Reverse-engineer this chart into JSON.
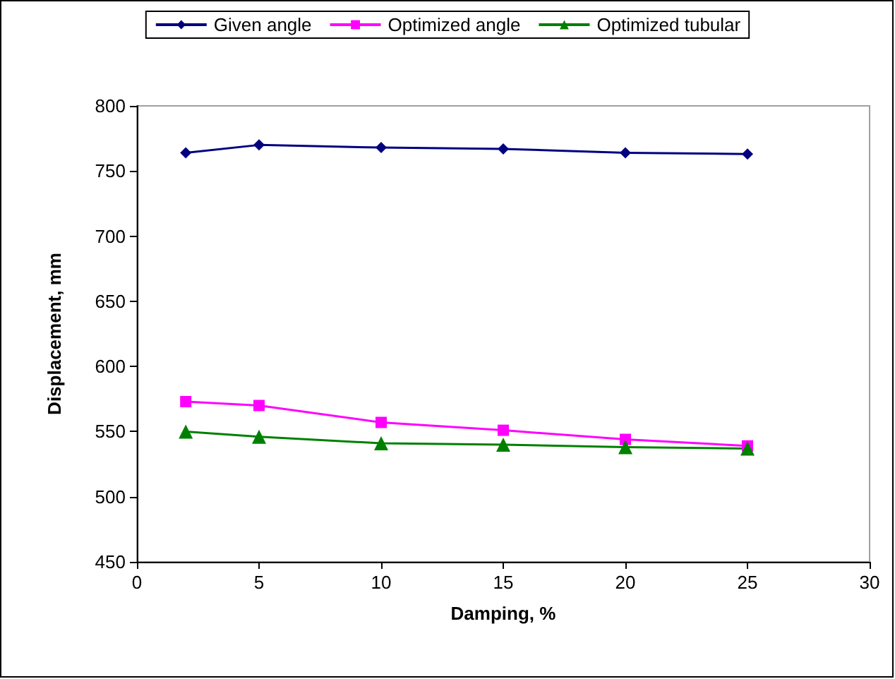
{
  "chart_data": {
    "type": "line",
    "xlabel": "Damping, %",
    "ylabel": "Displacement, mm",
    "x": [
      2,
      5,
      10,
      15,
      20,
      25
    ],
    "series": [
      {
        "name": "Given angle",
        "color": "#000080",
        "marker": "diamond",
        "values": [
          764,
          770,
          768,
          767,
          764,
          763
        ]
      },
      {
        "name": "Optimized angle",
        "color": "#ff00ff",
        "marker": "square",
        "values": [
          573,
          570,
          557,
          551,
          544,
          539
        ]
      },
      {
        "name": "Optimized tubular",
        "color": "#008000",
        "marker": "triangle",
        "values": [
          550,
          546,
          541,
          540,
          538,
          537
        ]
      }
    ],
    "xlim": [
      0,
      30
    ],
    "xticks": [
      0,
      5,
      10,
      15,
      20,
      25,
      30
    ],
    "ylim": [
      450,
      800
    ],
    "yticks": [
      450,
      500,
      550,
      600,
      650,
      700,
      750,
      800
    ],
    "grid": false,
    "legend": "top"
  }
}
